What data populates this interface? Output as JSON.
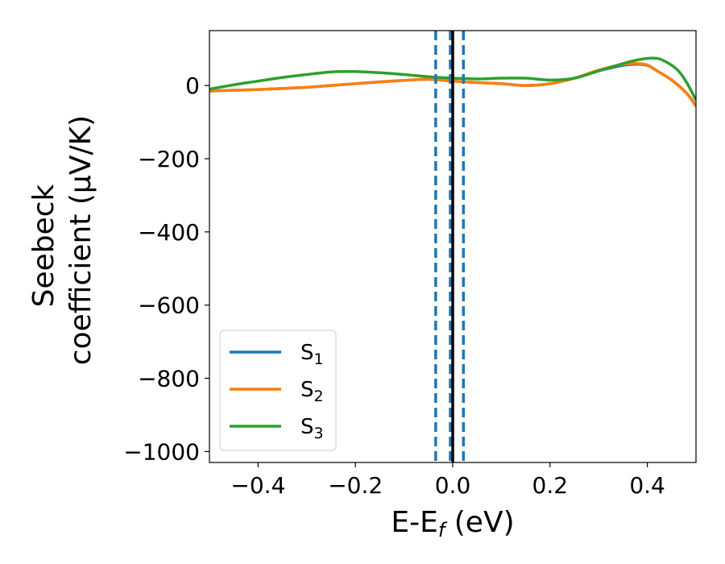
{
  "chart_data": {
    "type": "line",
    "xlabel": "E-E",
    "xlabel_sub": "f",
    "xlabel_unit": " (eV)",
    "ylabel_line1": "Seebeck",
    "ylabel_line2": "coefficient  (μV/K)",
    "xlim": [
      -0.5,
      0.5
    ],
    "ylim": [
      -1030,
      150
    ],
    "xticks": [
      -0.4,
      -0.2,
      0.0,
      0.2,
      0.4
    ],
    "xtick_labels": [
      "−0.4",
      "−0.2",
      "0.0",
      "0.2",
      "0.4"
    ],
    "yticks": [
      0,
      -200,
      -400,
      -600,
      -800,
      -1000
    ],
    "ytick_labels": [
      "0",
      "−200",
      "−400",
      "−600",
      "−800",
      "−1000"
    ],
    "legend_position": "lower-left",
    "series": [
      {
        "name": "S",
        "sub": "1",
        "color": "#1f77b4",
        "x": [
          -0.5,
          -0.45,
          -0.4,
          -0.35,
          -0.3,
          -0.25,
          -0.2,
          -0.15,
          -0.1,
          -0.05,
          0.0,
          0.05,
          0.1,
          0.15,
          0.2,
          0.25,
          0.3,
          0.35,
          0.38,
          0.4,
          0.42,
          0.45,
          0.48,
          0.5
        ],
        "y": [
          -15,
          -13,
          -11,
          -8,
          -5,
          0,
          5,
          10,
          14,
          17,
          12,
          8,
          5,
          0,
          5,
          20,
          40,
          55,
          58,
          55,
          40,
          15,
          -20,
          -55
        ]
      },
      {
        "name": "S",
        "sub": "2",
        "color": "#ff7f0e",
        "x": [
          -0.5,
          -0.45,
          -0.4,
          -0.35,
          -0.3,
          -0.25,
          -0.2,
          -0.15,
          -0.1,
          -0.05,
          0.0,
          0.05,
          0.1,
          0.15,
          0.2,
          0.25,
          0.3,
          0.35,
          0.38,
          0.4,
          0.42,
          0.45,
          0.48,
          0.5
        ],
        "y": [
          -15,
          -13,
          -11,
          -8,
          -5,
          0,
          5,
          10,
          14,
          17,
          12,
          8,
          5,
          0,
          5,
          20,
          42,
          58,
          60,
          56,
          40,
          15,
          -20,
          -57
        ]
      },
      {
        "name": "S",
        "sub": "3",
        "color": "#2ca02c",
        "x": [
          -0.5,
          -0.45,
          -0.4,
          -0.35,
          -0.3,
          -0.25,
          -0.2,
          -0.15,
          -0.1,
          -0.05,
          0.0,
          0.05,
          0.1,
          0.15,
          0.2,
          0.25,
          0.3,
          0.35,
          0.38,
          0.41,
          0.43,
          0.46,
          0.48,
          0.5
        ],
        "y": [
          -10,
          2,
          12,
          22,
          30,
          37,
          38,
          35,
          30,
          24,
          20,
          18,
          20,
          20,
          15,
          20,
          40,
          60,
          70,
          75,
          70,
          45,
          10,
          -40
        ]
      }
    ],
    "vlines": [
      {
        "x": -0.035,
        "style": "dashed",
        "color": "#1f77b4"
      },
      {
        "x": -0.005,
        "style": "dashed",
        "color": "#1f77b4"
      },
      {
        "x": 0.022,
        "style": "dashed",
        "color": "#1f77b4"
      },
      {
        "x": 0.0,
        "style": "solid",
        "color": "#000000"
      }
    ]
  }
}
